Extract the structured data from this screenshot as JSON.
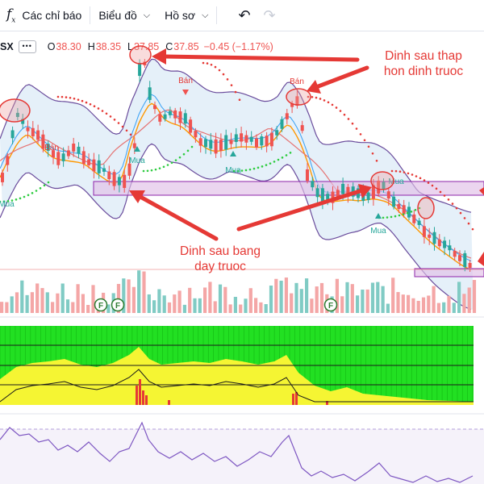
{
  "toolbar": {
    "indicators_label": "Các chỉ báo",
    "chart_label": "Biểu đồ",
    "profile_label": "Hồ sơ"
  },
  "legend": {
    "symbol": "SX",
    "open_key": "O",
    "open": "38.30",
    "high_key": "H",
    "high": "38.35",
    "low_key": "L",
    "low": "37.85",
    "close_key": "C",
    "close": "37.85",
    "change": "−0.45 (−1.17%)"
  },
  "annotations": {
    "top_note_line1": "Dinh sau thap",
    "top_note_line2": "hon dinh truoc",
    "bottom_note_line1": "Dinh sau bang",
    "bottom_note_line2": "day truoc"
  },
  "signals": {
    "sell": "Bán",
    "buy": "Mua",
    "flag": "F"
  },
  "colors": {
    "up": "#26a69a",
    "down": "#ef5350",
    "annotation": "#e53935",
    "zone": "#ce93d8",
    "green_panel": "#22e022",
    "yellow_panel": "#f5f533",
    "rsi": "#7e57c2"
  }
}
